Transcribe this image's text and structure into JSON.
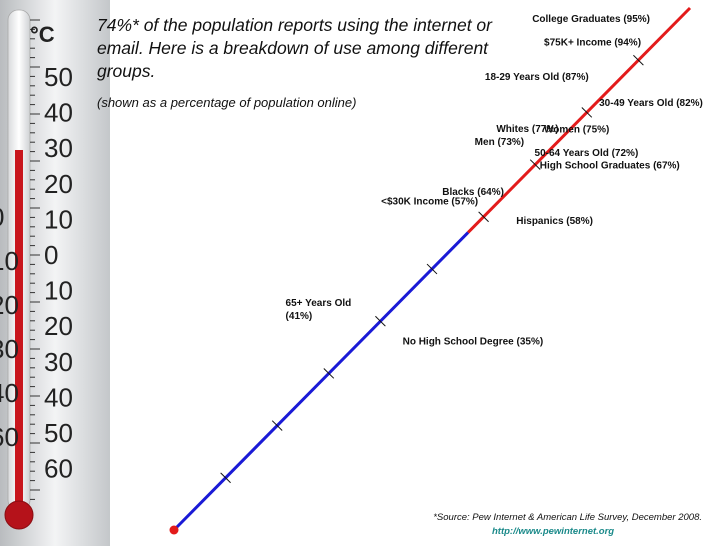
{
  "headline": "74%* of the population reports using the internet or email. Here is a breakdown of use among different groups.",
  "subtitle": "(shown as a percentage of population online)",
  "source": "*Source: Pew Internet & American Life Survey, December 2008.",
  "source_url": "http://www.pewinternet.org",
  "thermometer": {
    "unit": "°C",
    "scale_labels": [
      "50",
      "40",
      "30",
      "20",
      "10",
      "0",
      "10",
      "20",
      "30",
      "40",
      "50",
      "60"
    ],
    "left_labels": [
      "0",
      "10",
      "20",
      "30",
      "40",
      "60"
    ]
  },
  "colors": {
    "low": "#1a1ad6",
    "high": "#e31b1b",
    "url": "#1b8a8a"
  },
  "chart_data": {
    "type": "scatter",
    "title": "74%* of the population reports using the internet or email. Here is a breakdown of use among different groups.",
    "subtitle": "(shown as a percentage of population online)",
    "xlim": [
      0,
      100
    ],
    "ylim": [
      0,
      100
    ],
    "color_split_at": 57,
    "points": [
      {
        "label": "College Graduates (95%)",
        "value": 95
      },
      {
        "label": "$75K+ Income (94%)",
        "value": 94
      },
      {
        "label": "18-29 Years Old (87%)",
        "value": 87
      },
      {
        "label": "30-49 Years Old (82%)",
        "value": 82
      },
      {
        "label": "Whites (77%)",
        "value": 77
      },
      {
        "label": "Women (75%)",
        "value": 75
      },
      {
        "label": "Men (73%)",
        "value": 73
      },
      {
        "label": "50-64 Years Old (72%)",
        "value": 72
      },
      {
        "label": "High School Graduates (67%)",
        "value": 67
      },
      {
        "label": "Blacks (64%)",
        "value": 64
      },
      {
        "label": "Hispanics (58%)",
        "value": 58
      },
      {
        "label": "<$30K Income (57%)",
        "value": 57
      },
      {
        "label": "65+ Years Old (41%)",
        "value": 41
      },
      {
        "label": "No High School Degree (35%)",
        "value": 35
      }
    ],
    "ticks": [
      10,
      20,
      30,
      40,
      50,
      60,
      70,
      80,
      90
    ]
  }
}
